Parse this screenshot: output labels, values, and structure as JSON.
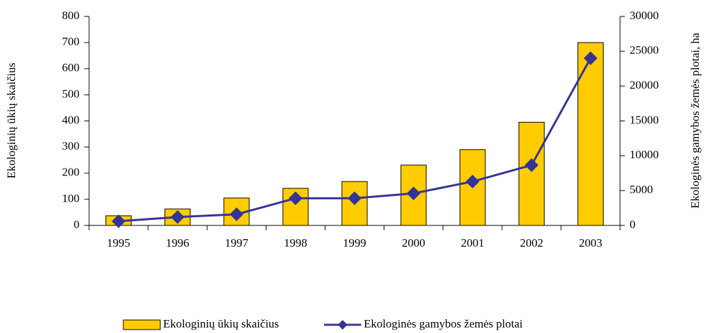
{
  "chart_data": {
    "type": "bar_line",
    "categories": [
      "1995",
      "1996",
      "1997",
      "1998",
      "1999",
      "2000",
      "2001",
      "2002",
      "2003"
    ],
    "series": [
      {
        "name": "Ekologinių ūkių skaičius",
        "color": "#ffcc00",
        "type": "bar",
        "values": [
          37,
          63,
          105,
          142,
          168,
          231,
          290,
          395,
          700
        ]
      },
      {
        "name": "Ekologinės gamybos žemės plotai",
        "color": "#333399",
        "type": "line",
        "axis": "y2",
        "values": [
          600,
          1200,
          1600,
          3900,
          3900,
          4600,
          6300,
          8650,
          24000
        ]
      }
    ],
    "y_label": "Ekologinių ūkių skaičius",
    "y2_label": "Ekologinės gamybos žemės plotai, ha",
    "ylim": [
      0,
      800
    ],
    "yticks": [
      0,
      100,
      200,
      300,
      400,
      500,
      600,
      700,
      800
    ],
    "y2lim": [
      0,
      30000
    ],
    "y2ticks": [
      0,
      5000,
      10000,
      15000,
      20000,
      25000,
      30000
    ],
    "legend": "bottom"
  }
}
